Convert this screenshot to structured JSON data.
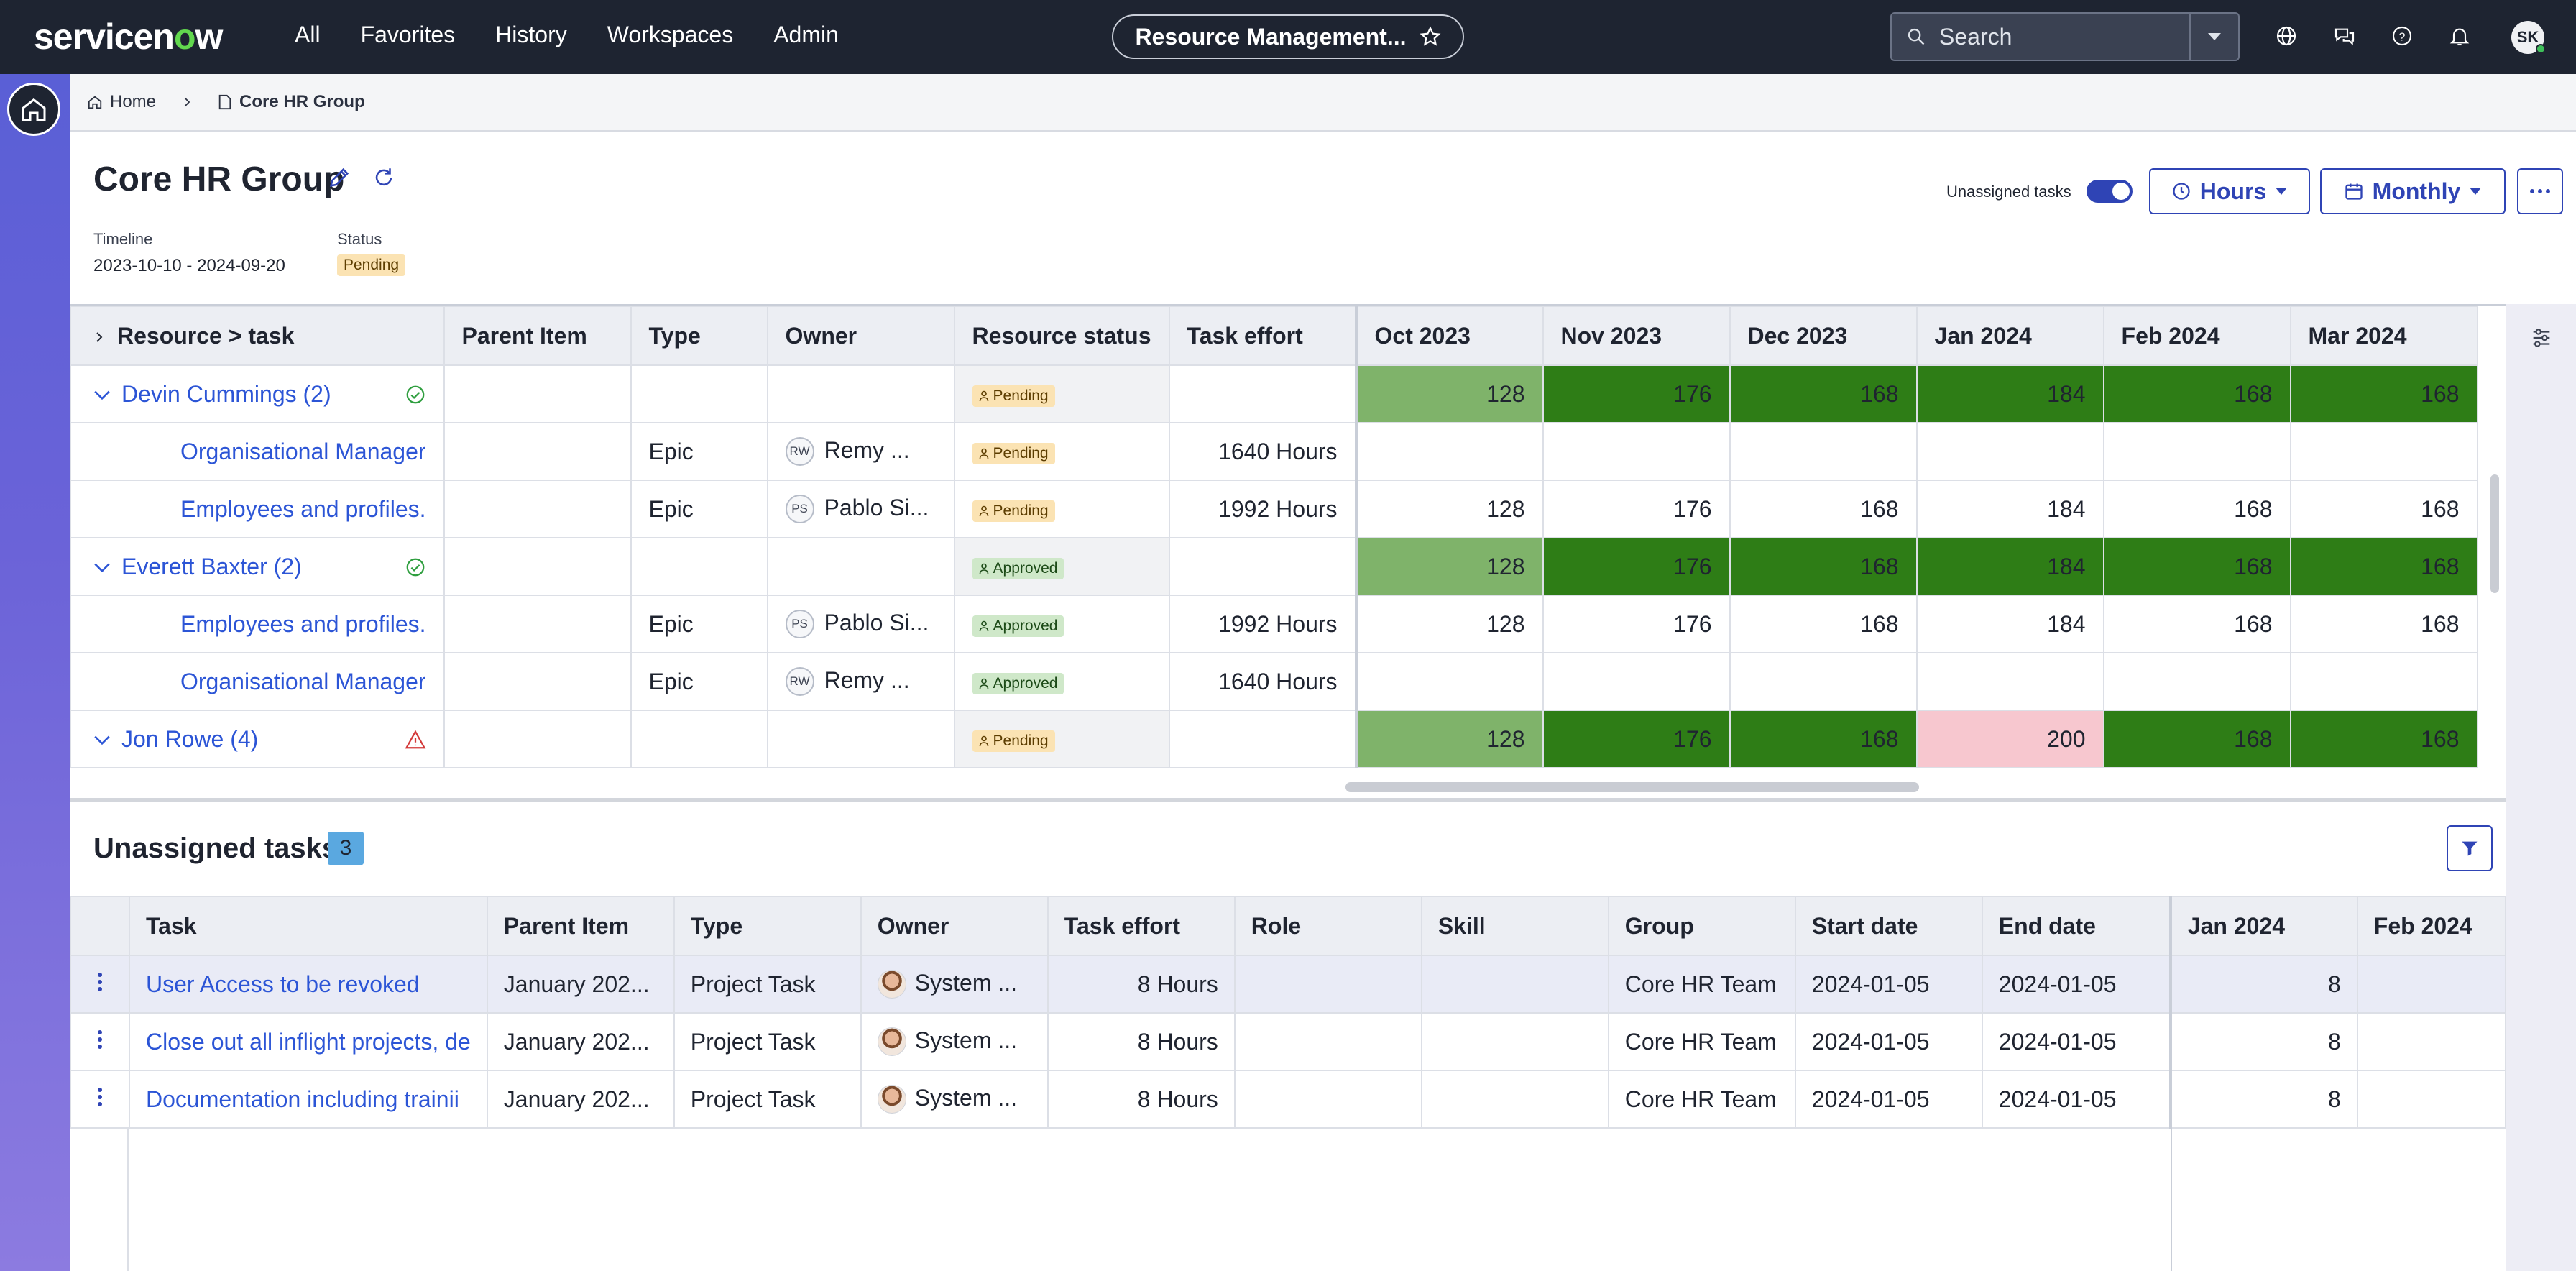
{
  "topbar": {
    "logo": "servicenow",
    "nav": [
      "All",
      "Favorites",
      "History",
      "Workspaces",
      "Admin"
    ],
    "app_title": "Resource Management...",
    "search_placeholder": "Search",
    "avatar_initials": "SK"
  },
  "breadcrumb": {
    "home": "Home",
    "current": "Core HR Group"
  },
  "header": {
    "title": "Core HR Group",
    "timeline_label": "Timeline",
    "timeline_value": "2023-10-10 - 2024-09-20",
    "status_label": "Status",
    "status_value": "Pending",
    "unassigned_toggle_label": "Unassigned tasks",
    "unassigned_toggle_on": true,
    "unit_button": "Hours",
    "period_button": "Monthly"
  },
  "resource_grid": {
    "columns": [
      "Resource > task",
      "Parent Item",
      "Type",
      "Owner",
      "Resource status",
      "Task effort",
      "Oct 2023",
      "Nov 2023",
      "Dec 2023",
      "Jan 2024",
      "Feb 2024",
      "Mar 2024"
    ],
    "rows": [
      {
        "kind": "group",
        "name": "Devin Cummings (2)",
        "indicator": "check-circle",
        "status": "Pending",
        "months": [
          "128",
          "176",
          "168",
          "184",
          "168",
          "168"
        ],
        "shade": [
          "light",
          "dark",
          "dark",
          "dark",
          "dark",
          "dark"
        ]
      },
      {
        "kind": "task",
        "name": "Organisational Manager",
        "type": "Epic",
        "owner_initials": "RW",
        "owner": "Remy ...",
        "status": "Pending",
        "effort": "1640 Hours",
        "months": [
          "",
          "",
          "",
          "",
          "",
          ""
        ]
      },
      {
        "kind": "task",
        "name": "Employees and profiles.",
        "type": "Epic",
        "owner_initials": "PS",
        "owner": "Pablo Si...",
        "status": "Pending",
        "effort": "1992 Hours",
        "months": [
          "128",
          "176",
          "168",
          "184",
          "168",
          "168"
        ]
      },
      {
        "kind": "group",
        "name": "Everett Baxter (2)",
        "indicator": "check-circle",
        "status": "Approved",
        "months": [
          "128",
          "176",
          "168",
          "184",
          "168",
          "168"
        ],
        "shade": [
          "light",
          "dark",
          "dark",
          "dark",
          "dark",
          "dark"
        ]
      },
      {
        "kind": "task",
        "name": "Employees and profiles.",
        "type": "Epic",
        "owner_initials": "PS",
        "owner": "Pablo Si...",
        "status": "Approved",
        "effort": "1992 Hours",
        "months": [
          "128",
          "176",
          "168",
          "184",
          "168",
          "168"
        ]
      },
      {
        "kind": "task",
        "name": "Organisational Manager",
        "type": "Epic",
        "owner_initials": "RW",
        "owner": "Remy ...",
        "status": "Approved",
        "effort": "1640 Hours",
        "months": [
          "",
          "",
          "",
          "",
          "",
          ""
        ]
      },
      {
        "kind": "group",
        "name": "Jon Rowe (4)",
        "indicator": "warning-triangle",
        "status": "Pending",
        "months": [
          "128",
          "176",
          "168",
          "200",
          "168",
          "168"
        ],
        "shade": [
          "light",
          "dark",
          "dark",
          "pink",
          "dark",
          "dark"
        ]
      }
    ]
  },
  "unassigned": {
    "title": "Unassigned tasks",
    "count": "3",
    "columns": [
      "Task",
      "Parent Item",
      "Type",
      "Owner",
      "Task effort",
      "Role",
      "Skill",
      "Group",
      "Start date",
      "End date",
      "Jan 2024",
      "Feb 2024"
    ],
    "rows": [
      {
        "task": "User Access to be revoked",
        "parent": "January 202...",
        "type": "Project Task",
        "owner": "System ...",
        "effort": "8 Hours",
        "role": "",
        "skill": "",
        "group": "Core HR Team",
        "start": "2024-01-05",
        "end": "2024-01-05",
        "jan": "8",
        "feb": ""
      },
      {
        "task": "Close out all inflight projects, de",
        "parent": "January 202...",
        "type": "Project Task",
        "owner": "System ...",
        "effort": "8 Hours",
        "role": "",
        "skill": "",
        "group": "Core HR Team",
        "start": "2024-01-05",
        "end": "2024-01-05",
        "jan": "8",
        "feb": ""
      },
      {
        "task": "Documentation including trainii",
        "parent": "January 202...",
        "type": "Project Task",
        "owner": "System ...",
        "effort": "8 Hours",
        "role": "",
        "skill": "",
        "group": "Core HR Team",
        "start": "2024-01-05",
        "end": "2024-01-05",
        "jan": "8",
        "feb": ""
      }
    ]
  }
}
